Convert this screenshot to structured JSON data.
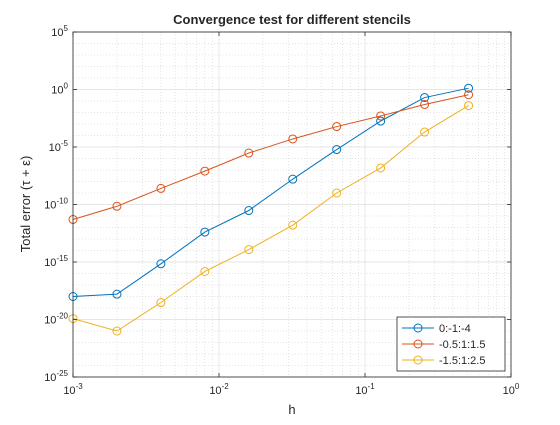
{
  "chart_data": {
    "type": "line",
    "title": "Convergence test for different stencils",
    "xlabel": "h",
    "ylabel": "Total error (τ + ε)",
    "xscale": "log",
    "yscale": "log",
    "xlim": [
      0.001,
      1
    ],
    "ylim": [
      1e-25,
      100000.0
    ],
    "grid": true,
    "minor_grid": true,
    "legend_position": "bottom-right",
    "x_ticks": [
      {
        "value": 0.001,
        "base": "10",
        "exp": "-3"
      },
      {
        "value": 0.01,
        "base": "10",
        "exp": "-2"
      },
      {
        "value": 0.1,
        "base": "10",
        "exp": "-1"
      },
      {
        "value": 1,
        "base": "10",
        "exp": "0"
      }
    ],
    "y_ticks": [
      {
        "value": 1e-25,
        "base": "10",
        "exp": "-25"
      },
      {
        "value": 1e-20,
        "base": "10",
        "exp": "-20"
      },
      {
        "value": 1e-15,
        "base": "10",
        "exp": "-15"
      },
      {
        "value": 1e-10,
        "base": "10",
        "exp": "-10"
      },
      {
        "value": 1e-05,
        "base": "10",
        "exp": "-5"
      },
      {
        "value": 1,
        "base": "10",
        "exp": "0"
      },
      {
        "value": 100000.0,
        "base": "10",
        "exp": "5"
      }
    ],
    "x": [
      0.001,
      0.002,
      0.004,
      0.008,
      0.016,
      0.032,
      0.064,
      0.128,
      0.256,
      0.512
    ],
    "series": [
      {
        "name": "0:-1:-4",
        "color": "#0072BD",
        "values": [
          1e-18,
          1.6e-18,
          7e-16,
          4e-13,
          3e-11,
          1.6e-08,
          6e-06,
          0.0018,
          0.2,
          1.3
        ]
      },
      {
        "name": "-0.5:1:1.5",
        "color": "#D95319",
        "values": [
          5e-12,
          7e-11,
          2.5e-09,
          8e-08,
          3e-06,
          5e-05,
          0.0006,
          0.005,
          0.05,
          0.35
        ]
      },
      {
        "name": "-1.5:1:2.5",
        "color": "#EDB120",
        "values": [
          1.2e-20,
          1e-21,
          3e-19,
          1.5e-16,
          1.2e-14,
          1.6e-12,
          1e-09,
          1.5e-07,
          0.0002,
          0.04
        ]
      }
    ]
  }
}
